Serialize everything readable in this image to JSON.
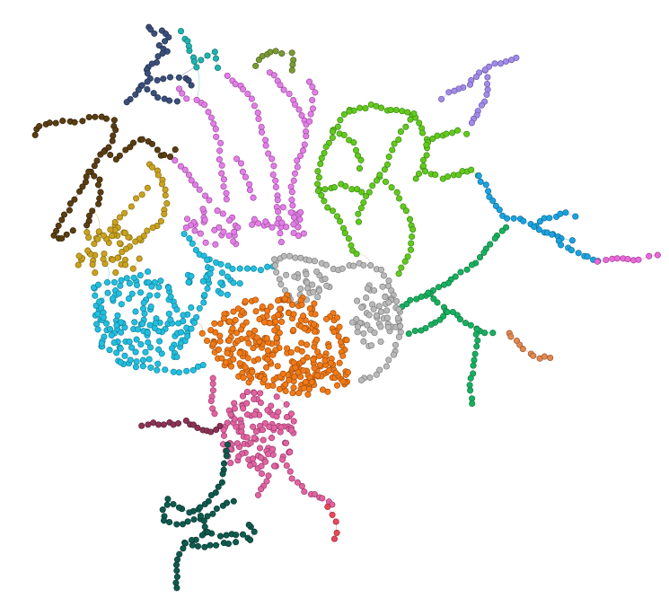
{
  "diagram": {
    "type": "network-graph",
    "labels_shown": false,
    "background": "#ffffff",
    "clusters": [
      {
        "id": "c01",
        "color": "#3b4f7a",
        "stroke": "#243152"
      },
      {
        "id": "c02",
        "color": "#1fb3b0",
        "stroke": "#137573"
      },
      {
        "id": "c03",
        "color": "#7a9a34",
        "stroke": "#4f6620"
      },
      {
        "id": "c04",
        "color": "#e07fe6",
        "stroke": "#a2499f"
      },
      {
        "id": "c05",
        "color": "#5a3e12",
        "stroke": "#36240a"
      },
      {
        "id": "c06",
        "color": "#c9a21f",
        "stroke": "#8b6e0f"
      },
      {
        "id": "c07",
        "color": "#62c91f",
        "stroke": "#3e8a10"
      },
      {
        "id": "c08",
        "color": "#a08be6",
        "stroke": "#6b59b0"
      },
      {
        "id": "c09",
        "color": "#1aa3df",
        "stroke": "#0f6f9c"
      },
      {
        "id": "c10",
        "color": "#e86ad8",
        "stroke": "#a63e98"
      },
      {
        "id": "c11",
        "color": "#22bedf",
        "stroke": "#12849c"
      },
      {
        "id": "c12",
        "color": "#b9b9b9",
        "stroke": "#7f7f7f"
      },
      {
        "id": "c13",
        "color": "#18b060",
        "stroke": "#0e7a41"
      },
      {
        "id": "c14",
        "color": "#e0894f",
        "stroke": "#9c5730"
      },
      {
        "id": "c15",
        "color": "#f07a18",
        "stroke": "#a84f09"
      },
      {
        "id": "c16",
        "color": "#e064a0",
        "stroke": "#a03a6e"
      },
      {
        "id": "c17",
        "color": "#8a3454",
        "stroke": "#5a1f36"
      },
      {
        "id": "c18",
        "color": "#e8485a",
        "stroke": "#a52a38"
      },
      {
        "id": "c19",
        "color": "#0f5a4e",
        "stroke": "#073a32"
      }
    ]
  }
}
